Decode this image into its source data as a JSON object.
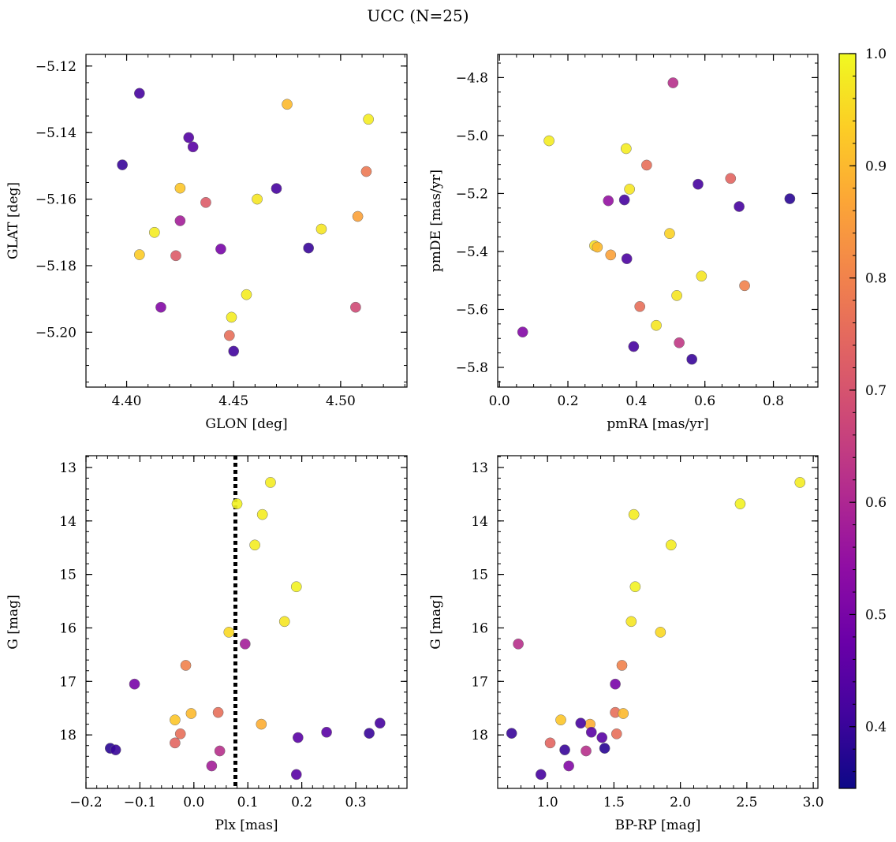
{
  "title": "UCC (N=25)",
  "colormap": {
    "name": "plasma",
    "min": 0.345,
    "max": 1.0,
    "ticks": [
      0.4,
      0.5,
      0.6,
      0.7,
      0.8,
      0.9,
      1.0
    ],
    "tick_labels": [
      "0.4",
      "0.5",
      "0.6",
      "0.7",
      "0.8",
      "0.9",
      "1.0"
    ]
  },
  "chart_data": [
    {
      "type": "scatter",
      "xlabel": "GLON [deg]",
      "ylabel": "GLAT [deg]",
      "xlim": [
        4.381,
        4.531
      ],
      "ylim": [
        -5.2165,
        -5.1165
      ],
      "xticks": [
        4.4,
        4.45,
        4.5
      ],
      "xtick_labels": [
        "4.40",
        "4.45",
        "4.50"
      ],
      "yticks": [
        -5.2,
        -5.18,
        -5.16,
        -5.14,
        -5.12
      ],
      "ytick_labels": [
        "−5.20",
        "−5.18",
        "−5.16",
        "−5.14",
        "−5.12"
      ],
      "x_minor_step": 0.01,
      "y_minor_step": 0.005,
      "y_inverted": false,
      "points": [
        {
          "x": 4.406,
          "y": -5.1282,
          "p": 0.42
        },
        {
          "x": 4.475,
          "y": -5.1315,
          "p": 0.9
        },
        {
          "x": 4.513,
          "y": -5.136,
          "p": 0.98
        },
        {
          "x": 4.429,
          "y": -5.1415,
          "p": 0.44
        },
        {
          "x": 4.431,
          "y": -5.1443,
          "p": 0.45
        },
        {
          "x": 4.398,
          "y": -5.1497,
          "p": 0.4
        },
        {
          "x": 4.512,
          "y": -5.1517,
          "p": 0.78
        },
        {
          "x": 4.425,
          "y": -5.1567,
          "p": 0.92
        },
        {
          "x": 4.47,
          "y": -5.1568,
          "p": 0.42
        },
        {
          "x": 4.437,
          "y": -5.161,
          "p": 0.72
        },
        {
          "x": 4.461,
          "y": -5.16,
          "p": 0.97
        },
        {
          "x": 4.425,
          "y": -5.1665,
          "p": 0.58
        },
        {
          "x": 4.508,
          "y": -5.1652,
          "p": 0.86
        },
        {
          "x": 4.413,
          "y": -5.17,
          "p": 0.98
        },
        {
          "x": 4.491,
          "y": -5.169,
          "p": 0.97
        },
        {
          "x": 4.406,
          "y": -5.1767,
          "p": 0.93
        },
        {
          "x": 4.423,
          "y": -5.177,
          "p": 0.72
        },
        {
          "x": 4.444,
          "y": -5.175,
          "p": 0.5
        },
        {
          "x": 4.485,
          "y": -5.1747,
          "p": 0.4
        },
        {
          "x": 4.456,
          "y": -5.1887,
          "p": 0.98
        },
        {
          "x": 4.416,
          "y": -5.1925,
          "p": 0.52
        },
        {
          "x": 4.507,
          "y": -5.1925,
          "p": 0.68
        },
        {
          "x": 4.449,
          "y": -5.1955,
          "p": 0.98
        },
        {
          "x": 4.448,
          "y": -5.201,
          "p": 0.76
        },
        {
          "x": 4.45,
          "y": -5.2057,
          "p": 0.41
        }
      ]
    },
    {
      "type": "scatter",
      "xlabel": "pmRA [mas/yr]",
      "ylabel": "pmDE [mas/yr]",
      "xlim": [
        -0.005,
        0.93
      ],
      "ylim": [
        -5.868,
        -4.72
      ],
      "xticks": [
        0.0,
        0.2,
        0.4,
        0.6,
        0.8
      ],
      "xtick_labels": [
        "0.0",
        "0.2",
        "0.4",
        "0.6",
        "0.8"
      ],
      "yticks": [
        -5.8,
        -5.6,
        -5.4,
        -5.2,
        -5.0,
        -4.8
      ],
      "ytick_labels": [
        "−5.8",
        "−5.6",
        "−5.4",
        "−5.2",
        "−5.0",
        "−4.8"
      ],
      "x_minor_step": 0.05,
      "y_minor_step": 0.05,
      "y_inverted": false,
      "points": [
        {
          "x": 0.507,
          "y": -4.818,
          "p": 0.62
        },
        {
          "x": 0.145,
          "y": -5.018,
          "p": 0.98
        },
        {
          "x": 0.37,
          "y": -5.045,
          "p": 0.98
        },
        {
          "x": 0.43,
          "y": -5.102,
          "p": 0.76
        },
        {
          "x": 0.675,
          "y": -5.148,
          "p": 0.74
        },
        {
          "x": 0.58,
          "y": -5.168,
          "p": 0.42
        },
        {
          "x": 0.38,
          "y": -5.185,
          "p": 0.97
        },
        {
          "x": 0.318,
          "y": -5.225,
          "p": 0.55
        },
        {
          "x": 0.365,
          "y": -5.222,
          "p": 0.42
        },
        {
          "x": 0.848,
          "y": -5.218,
          "p": 0.38
        },
        {
          "x": 0.7,
          "y": -5.245,
          "p": 0.42
        },
        {
          "x": 0.497,
          "y": -5.338,
          "p": 0.94
        },
        {
          "x": 0.278,
          "y": -5.38,
          "p": 0.96
        },
        {
          "x": 0.286,
          "y": -5.385,
          "p": 0.9
        },
        {
          "x": 0.325,
          "y": -5.412,
          "p": 0.86
        },
        {
          "x": 0.372,
          "y": -5.425,
          "p": 0.43
        },
        {
          "x": 0.59,
          "y": -5.485,
          "p": 0.97
        },
        {
          "x": 0.716,
          "y": -5.518,
          "p": 0.8
        },
        {
          "x": 0.518,
          "y": -5.552,
          "p": 0.97
        },
        {
          "x": 0.41,
          "y": -5.59,
          "p": 0.76
        },
        {
          "x": 0.458,
          "y": -5.655,
          "p": 0.97
        },
        {
          "x": 0.068,
          "y": -5.678,
          "p": 0.52
        },
        {
          "x": 0.525,
          "y": -5.715,
          "p": 0.64
        },
        {
          "x": 0.392,
          "y": -5.728,
          "p": 0.42
        },
        {
          "x": 0.562,
          "y": -5.772,
          "p": 0.4
        }
      ]
    },
    {
      "type": "scatter",
      "xlabel": "Plx [mas]",
      "ylabel": "G [mag]",
      "xlim": [
        -0.2,
        0.395
      ],
      "ylim": [
        12.78,
        19.0
      ],
      "xticks": [
        -0.2,
        -0.1,
        0.0,
        0.1,
        0.2,
        0.3
      ],
      "xtick_labels": [
        "−0.2",
        "−0.1",
        "0.0",
        "0.1",
        "0.2",
        "0.3"
      ],
      "yticks": [
        13,
        14,
        15,
        16,
        17,
        18
      ],
      "ytick_labels": [
        "13",
        "14",
        "15",
        "16",
        "17",
        "18"
      ],
      "x_minor_step": 0.02,
      "y_minor_step": 0.2,
      "y_inverted": true,
      "vline": 0.077,
      "points": [
        {
          "x": 0.142,
          "y": 13.28,
          "p": 0.98
        },
        {
          "x": 0.08,
          "y": 13.68,
          "p": 0.99
        },
        {
          "x": 0.127,
          "y": 13.88,
          "p": 0.98
        },
        {
          "x": 0.113,
          "y": 14.45,
          "p": 0.98
        },
        {
          "x": 0.19,
          "y": 15.23,
          "p": 0.99
        },
        {
          "x": 0.168,
          "y": 15.88,
          "p": 0.97
        },
        {
          "x": 0.065,
          "y": 16.08,
          "p": 0.95
        },
        {
          "x": 0.095,
          "y": 16.3,
          "p": 0.58
        },
        {
          "x": -0.015,
          "y": 16.7,
          "p": 0.8
        },
        {
          "x": -0.11,
          "y": 17.05,
          "p": 0.5
        },
        {
          "x": 0.045,
          "y": 17.58,
          "p": 0.76
        },
        {
          "x": -0.005,
          "y": 17.6,
          "p": 0.9
        },
        {
          "x": -0.035,
          "y": 17.72,
          "p": 0.92
        },
        {
          "x": 0.125,
          "y": 17.8,
          "p": 0.88
        },
        {
          "x": 0.345,
          "y": 17.78,
          "p": 0.42
        },
        {
          "x": 0.246,
          "y": 17.95,
          "p": 0.45
        },
        {
          "x": 0.325,
          "y": 17.97,
          "p": 0.4
        },
        {
          "x": -0.025,
          "y": 17.98,
          "p": 0.76
        },
        {
          "x": 0.193,
          "y": 18.05,
          "p": 0.45
        },
        {
          "x": -0.035,
          "y": 18.15,
          "p": 0.74
        },
        {
          "x": -0.155,
          "y": 18.25,
          "p": 0.38
        },
        {
          "x": -0.145,
          "y": 18.28,
          "p": 0.4
        },
        {
          "x": 0.048,
          "y": 18.3,
          "p": 0.62
        },
        {
          "x": 0.033,
          "y": 18.58,
          "p": 0.58
        },
        {
          "x": 0.19,
          "y": 18.74,
          "p": 0.45
        }
      ]
    },
    {
      "type": "scatter",
      "xlabel": "BP-RP [mag]",
      "ylabel": "G [mag]",
      "xlim": [
        0.625,
        3.035
      ],
      "ylim": [
        12.78,
        19.0
      ],
      "xticks": [
        1.0,
        1.5,
        2.0,
        2.5,
        3.0
      ],
      "xtick_labels": [
        "1.0",
        "1.5",
        "2.0",
        "2.5",
        "3.0"
      ],
      "yticks": [
        13,
        14,
        15,
        16,
        17,
        18
      ],
      "ytick_labels": [
        "13",
        "14",
        "15",
        "16",
        "17",
        "18"
      ],
      "x_minor_step": 0.1,
      "y_minor_step": 0.2,
      "y_inverted": true,
      "points": [
        {
          "x": 2.9,
          "y": 13.28,
          "p": 0.98
        },
        {
          "x": 2.45,
          "y": 13.68,
          "p": 0.99
        },
        {
          "x": 1.65,
          "y": 13.88,
          "p": 0.98
        },
        {
          "x": 1.93,
          "y": 14.45,
          "p": 0.98
        },
        {
          "x": 1.66,
          "y": 15.23,
          "p": 0.99
        },
        {
          "x": 1.63,
          "y": 15.88,
          "p": 0.97
        },
        {
          "x": 1.85,
          "y": 16.08,
          "p": 0.95
        },
        {
          "x": 0.78,
          "y": 16.3,
          "p": 0.62
        },
        {
          "x": 1.56,
          "y": 16.7,
          "p": 0.8
        },
        {
          "x": 1.51,
          "y": 17.05,
          "p": 0.5
        },
        {
          "x": 1.51,
          "y": 17.58,
          "p": 0.76
        },
        {
          "x": 1.57,
          "y": 17.6,
          "p": 0.9
        },
        {
          "x": 1.1,
          "y": 17.72,
          "p": 0.92
        },
        {
          "x": 1.32,
          "y": 17.8,
          "p": 0.88
        },
        {
          "x": 1.25,
          "y": 17.78,
          "p": 0.42
        },
        {
          "x": 0.73,
          "y": 17.97,
          "p": 0.4
        },
        {
          "x": 1.52,
          "y": 17.98,
          "p": 0.76
        },
        {
          "x": 1.33,
          "y": 17.95,
          "p": 0.45
        },
        {
          "x": 1.41,
          "y": 18.05,
          "p": 0.45
        },
        {
          "x": 1.02,
          "y": 18.15,
          "p": 0.74
        },
        {
          "x": 1.43,
          "y": 18.25,
          "p": 0.38
        },
        {
          "x": 1.13,
          "y": 18.28,
          "p": 0.4
        },
        {
          "x": 1.29,
          "y": 18.3,
          "p": 0.62
        },
        {
          "x": 1.16,
          "y": 18.58,
          "p": 0.52
        },
        {
          "x": 0.95,
          "y": 18.74,
          "p": 0.42
        }
      ]
    }
  ]
}
